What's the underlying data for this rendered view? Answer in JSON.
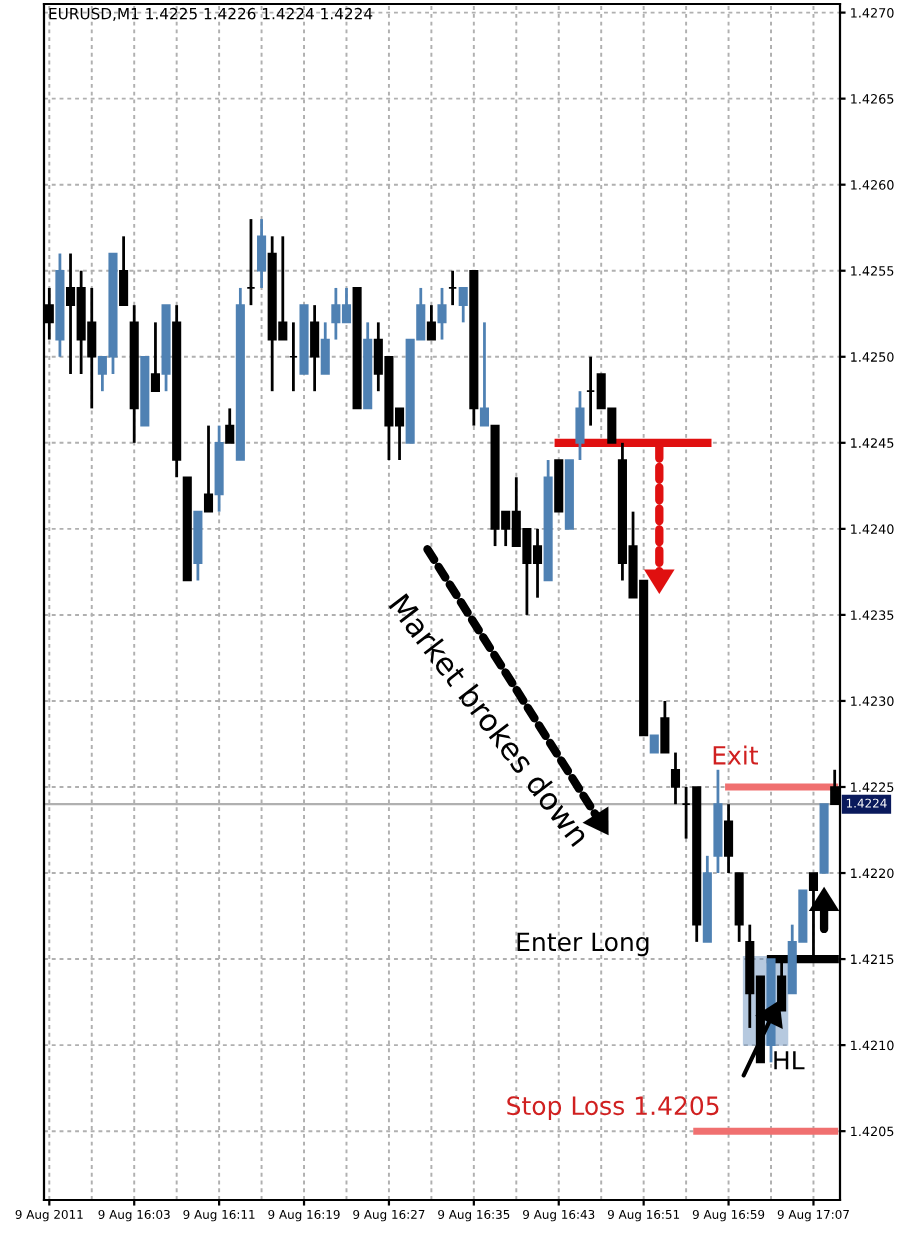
{
  "chart_data": {
    "type": "candlestick",
    "title": "EURUSD,M1 1.4225 1.4226 1.4224 1.4224",
    "categories": [
      "9 Aug 2011",
      null,
      null,
      null,
      null,
      null,
      null,
      null,
      "9 Aug 16:03",
      null,
      null,
      null,
      null,
      null,
      null,
      null,
      "9 Aug 16:11",
      null,
      null,
      null,
      null,
      null,
      null,
      null,
      "9 Aug 16:19",
      null,
      null,
      null,
      null,
      null,
      null,
      null,
      "9 Aug 16:27",
      null,
      null,
      null,
      null,
      null,
      null,
      null,
      "9 Aug 16:35",
      null,
      null,
      null,
      null,
      null,
      null,
      null,
      "9 Aug 16:43",
      null,
      null,
      null,
      null,
      null,
      null,
      null,
      "9 Aug 16:51",
      null,
      null,
      null,
      null,
      null,
      null,
      null,
      "9 Aug 16:59",
      null,
      null,
      null,
      null,
      null,
      null,
      null,
      "9 Aug 17:07",
      null,
      null
    ],
    "ohlc": [
      [
        1.4253,
        1.4254,
        1.4251,
        1.4252
      ],
      [
        1.4251,
        1.4256,
        1.425,
        1.4255
      ],
      [
        1.4254,
        1.4256,
        1.4249,
        1.4253
      ],
      [
        1.4254,
        1.4255,
        1.4249,
        1.4251
      ],
      [
        1.4252,
        1.4254,
        1.4247,
        1.425
      ],
      [
        1.4249,
        1.425,
        1.4248,
        1.425
      ],
      [
        1.425,
        1.4256,
        1.4249,
        1.4256
      ],
      [
        1.4255,
        1.4257,
        1.4253,
        1.4253
      ],
      [
        1.4252,
        1.4253,
        1.4245,
        1.4247
      ],
      [
        1.4246,
        1.425,
        1.4246,
        1.425
      ],
      [
        1.4249,
        1.4252,
        1.4248,
        1.4248
      ],
      [
        1.4249,
        1.4253,
        1.4248,
        1.4253
      ],
      [
        1.4252,
        1.4253,
        1.4243,
        1.4244
      ],
      [
        1.4243,
        1.4243,
        1.4237,
        1.4237
      ],
      [
        1.4238,
        1.4241,
        1.4237,
        1.4241
      ],
      [
        1.4242,
        1.4246,
        1.4241,
        1.4241
      ],
      [
        1.4242,
        1.4246,
        1.4241,
        1.4245
      ],
      [
        1.4246,
        1.4247,
        1.4245,
        1.4245
      ],
      [
        1.4244,
        1.4254,
        1.4244,
        1.4253
      ],
      [
        1.4254,
        1.4258,
        1.4253,
        1.4254
      ],
      [
        1.4255,
        1.4258,
        1.4254,
        1.4257
      ],
      [
        1.4256,
        1.4257,
        1.4248,
        1.4251
      ],
      [
        1.4252,
        1.4257,
        1.4251,
        1.4251
      ],
      [
        1.425,
        1.4252,
        1.4248,
        1.425
      ],
      [
        1.4249,
        1.4253,
        1.4249,
        1.4253
      ],
      [
        1.4252,
        1.4253,
        1.4248,
        1.425
      ],
      [
        1.4249,
        1.4252,
        1.4249,
        1.4251
      ],
      [
        1.4252,
        1.4254,
        1.4251,
        1.4253
      ],
      [
        1.4252,
        1.4254,
        1.4252,
        1.4253
      ],
      [
        1.4254,
        1.4254,
        1.4247,
        1.4247
      ],
      [
        1.4247,
        1.4252,
        1.4247,
        1.4251
      ],
      [
        1.4251,
        1.4252,
        1.4248,
        1.4249
      ],
      [
        1.425,
        1.425,
        1.4244,
        1.4246
      ],
      [
        1.4247,
        1.4247,
        1.4244,
        1.4246
      ],
      [
        1.4245,
        1.4251,
        1.4245,
        1.4251
      ],
      [
        1.4251,
        1.4254,
        1.4251,
        1.4253
      ],
      [
        1.4252,
        1.4253,
        1.4251,
        1.4251
      ],
      [
        1.4252,
        1.4254,
        1.4251,
        1.4253
      ],
      [
        1.4254,
        1.4255,
        1.4253,
        1.4254
      ],
      [
        1.4253,
        1.4254,
        1.4252,
        1.4254
      ],
      [
        1.4255,
        1.4255,
        1.4246,
        1.4247
      ],
      [
        1.4246,
        1.4252,
        1.4246,
        1.4247
      ],
      [
        1.4246,
        1.4246,
        1.4239,
        1.424
      ],
      [
        1.4241,
        1.4241,
        1.4239,
        1.424
      ],
      [
        1.4241,
        1.4243,
        1.4239,
        1.4239
      ],
      [
        1.424,
        1.424,
        1.4235,
        1.4238
      ],
      [
        1.4239,
        1.424,
        1.4236,
        1.4238
      ],
      [
        1.4237,
        1.4244,
        1.4237,
        1.4243
      ],
      [
        1.4244,
        1.4244,
        1.4241,
        1.4241
      ],
      [
        1.424,
        1.4244,
        1.424,
        1.4244
      ],
      [
        1.4245,
        1.4248,
        1.4244,
        1.4247
      ],
      [
        1.4248,
        1.425,
        1.4246,
        1.4248
      ],
      [
        1.4249,
        1.4249,
        1.4247,
        1.4247
      ],
      [
        1.4247,
        1.4247,
        1.4245,
        1.4245
      ],
      [
        1.4244,
        1.4245,
        1.4237,
        1.4238
      ],
      [
        1.4239,
        1.4241,
        1.4236,
        1.4236
      ],
      [
        1.4237,
        1.4237,
        1.4228,
        1.4228
      ],
      [
        1.4227,
        1.4228,
        1.4227,
        1.4228
      ],
      [
        1.4229,
        1.423,
        1.4227,
        1.4227
      ],
      [
        1.4226,
        1.4227,
        1.4224,
        1.4225
      ],
      [
        1.4224,
        1.4225,
        1.4222,
        1.4224
      ],
      [
        1.4225,
        1.4225,
        1.4216,
        1.4217
      ],
      [
        1.4216,
        1.4221,
        1.4216,
        1.422
      ],
      [
        1.4221,
        1.4226,
        1.422,
        1.4224
      ],
      [
        1.4223,
        1.4224,
        1.422,
        1.4221
      ],
      [
        1.422,
        1.422,
        1.4216,
        1.4217
      ],
      [
        1.4216,
        1.4217,
        1.4211,
        1.4213
      ],
      [
        1.4214,
        1.4214,
        1.4209,
        1.4209
      ],
      [
        1.421,
        1.4215,
        1.4209,
        1.4215
      ],
      [
        1.4214,
        1.4215,
        1.4212,
        1.4212
      ],
      [
        1.4213,
        1.4217,
        1.4213,
        1.4216
      ],
      [
        1.4216,
        1.4219,
        1.4216,
        1.4219
      ],
      [
        1.422,
        1.422,
        1.4215,
        1.4219
      ],
      [
        1.422,
        1.4224,
        1.422,
        1.4224
      ],
      [
        1.4225,
        1.4226,
        1.4224,
        1.4224
      ]
    ],
    "series": [
      {
        "type": "line",
        "color": "#e01010",
        "values": [
          null,
          null,
          null,
          null,
          null,
          null,
          null,
          null,
          null,
          null,
          null,
          null,
          null,
          null,
          null,
          null,
          null,
          null,
          null,
          null,
          null,
          null,
          null,
          null,
          null,
          null,
          null,
          null,
          null,
          null,
          null,
          null,
          null,
          null,
          null,
          null,
          null,
          null,
          null,
          null,
          null,
          null,
          null,
          null,
          null,
          null,
          null,
          null,
          1.4245,
          1.4245,
          1.4245,
          1.4245,
          1.4245,
          1.4245,
          1.4245,
          1.4245,
          1.4245,
          1.4245,
          1.4245,
          1.4245,
          1.4245,
          1.4245,
          1.4245,
          null,
          null,
          null,
          null,
          null,
          null,
          null,
          null,
          null,
          null,
          null,
          null
        ]
      },
      {
        "type": "line",
        "color": "#f07070",
        "values": [
          null,
          null,
          null,
          null,
          null,
          null,
          null,
          null,
          null,
          null,
          null,
          null,
          null,
          null,
          null,
          null,
          null,
          null,
          null,
          null,
          null,
          null,
          null,
          null,
          null,
          null,
          null,
          null,
          null,
          null,
          null,
          null,
          null,
          null,
          null,
          null,
          null,
          null,
          null,
          null,
          null,
          null,
          null,
          null,
          null,
          null,
          null,
          null,
          null,
          null,
          null,
          null,
          null,
          null,
          null,
          null,
          null,
          null,
          null,
          null,
          null,
          null,
          null,
          null,
          1.4225,
          1.4225,
          1.4225,
          1.4225,
          1.4225,
          1.4225,
          1.4225,
          1.4225,
          1.4225,
          1.4225,
          1.4225
        ]
      },
      {
        "type": "line",
        "color": "#000000",
        "values": [
          null,
          null,
          null,
          null,
          null,
          null,
          null,
          null,
          null,
          null,
          null,
          null,
          null,
          null,
          null,
          null,
          null,
          null,
          null,
          null,
          null,
          null,
          null,
          null,
          null,
          null,
          null,
          null,
          null,
          null,
          null,
          null,
          null,
          null,
          null,
          null,
          null,
          null,
          null,
          null,
          null,
          null,
          null,
          null,
          null,
          null,
          null,
          null,
          null,
          null,
          null,
          null,
          null,
          null,
          null,
          null,
          null,
          null,
          null,
          null,
          null,
          null,
          null,
          null,
          null,
          null,
          null,
          null,
          1.4215,
          1.4215,
          1.4215,
          1.4215,
          1.4215,
          1.4215,
          1.4215
        ]
      },
      {
        "type": "line",
        "color": "#f07070",
        "values": [
          null,
          null,
          null,
          null,
          null,
          null,
          null,
          null,
          null,
          null,
          null,
          null,
          null,
          null,
          null,
          null,
          null,
          null,
          null,
          null,
          null,
          null,
          null,
          null,
          null,
          null,
          null,
          null,
          null,
          null,
          null,
          null,
          null,
          null,
          null,
          null,
          null,
          null,
          null,
          null,
          null,
          null,
          null,
          null,
          null,
          null,
          null,
          null,
          null,
          null,
          null,
          null,
          null,
          null,
          null,
          null,
          null,
          null,
          null,
          null,
          null,
          1.4205,
          1.4205,
          1.4205,
          1.4205,
          1.4205,
          1.4205,
          1.4205,
          1.4205,
          1.4205,
          1.4205,
          1.4205,
          1.4205,
          1.4205,
          1.4205
        ]
      }
    ],
    "ref_lines": [
      {
        "axis": "y",
        "value": 1.4224,
        "label": "1.4224",
        "color": "#b0b0b0"
      }
    ],
    "annotations": [
      "Market brokes down",
      "Enter Long",
      "Exit",
      "HL",
      "Stop Loss 1.4205"
    ],
    "ylim": [
      1.4201,
      1.42705
    ],
    "yticks": [
      {
        "value": 1.4205,
        "label": "1.4205"
      },
      {
        "value": 1.421,
        "label": "1.4210"
      },
      {
        "value": 1.4215,
        "label": "1.4215"
      },
      {
        "value": 1.422,
        "label": "1.4220"
      },
      {
        "value": 1.4225,
        "label": "1.4225"
      },
      {
        "value": 1.423,
        "label": "1.4230"
      },
      {
        "value": 1.4235,
        "label": "1.4235"
      },
      {
        "value": 1.424,
        "label": "1.4240"
      },
      {
        "value": 1.4245,
        "label": "1.4245"
      },
      {
        "value": 1.425,
        "label": "1.4250"
      },
      {
        "value": 1.4255,
        "label": "1.4255"
      },
      {
        "value": 1.426,
        "label": "1.4260"
      },
      {
        "value": 1.4265,
        "label": "1.4265"
      },
      {
        "value": 1.427,
        "label": "1.4270"
      }
    ],
    "grid": true
  }
}
